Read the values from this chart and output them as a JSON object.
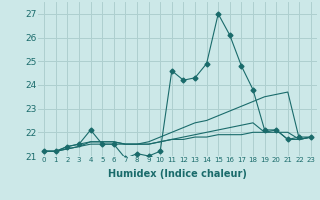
{
  "xlabel": "Humidex (Indice chaleur)",
  "bg_color": "#cce8e8",
  "grid_color": "#aecfcf",
  "line_color": "#1a6b6b",
  "xlim": [
    -0.5,
    23.5
  ],
  "ylim": [
    21.0,
    27.5
  ],
  "yticks": [
    21,
    22,
    23,
    24,
    25,
    26,
    27
  ],
  "xtick_labels": [
    "0",
    "1",
    "2",
    "3",
    "4",
    "5",
    "6",
    "7",
    "8",
    "9",
    "10",
    "11",
    "12",
    "13",
    "14",
    "15",
    "16",
    "17",
    "18",
    "19",
    "20",
    "21",
    "22",
    "23"
  ],
  "series": [
    [
      21.2,
      21.2,
      21.4,
      21.5,
      22.1,
      21.5,
      21.5,
      20.9,
      21.1,
      21.0,
      21.2,
      24.6,
      24.2,
      24.3,
      24.9,
      27.0,
      26.1,
      24.8,
      23.8,
      22.1,
      22.1,
      21.7,
      21.8,
      21.8
    ],
    [
      21.2,
      21.2,
      21.3,
      21.4,
      21.6,
      21.6,
      21.6,
      21.5,
      21.5,
      21.6,
      21.8,
      22.0,
      22.2,
      22.4,
      22.5,
      22.7,
      22.9,
      23.1,
      23.3,
      23.5,
      23.6,
      23.7,
      21.7,
      21.8
    ],
    [
      21.2,
      21.2,
      21.3,
      21.4,
      21.5,
      21.5,
      21.5,
      21.5,
      21.5,
      21.5,
      21.6,
      21.7,
      21.7,
      21.8,
      21.8,
      21.9,
      21.9,
      21.9,
      22.0,
      22.0,
      22.0,
      22.0,
      21.7,
      21.8
    ],
    [
      21.2,
      21.2,
      21.4,
      21.5,
      21.6,
      21.6,
      21.6,
      21.5,
      21.5,
      21.5,
      21.6,
      21.7,
      21.8,
      21.9,
      22.0,
      22.1,
      22.2,
      22.3,
      22.4,
      22.0,
      22.1,
      21.7,
      21.7,
      21.8
    ]
  ],
  "marker_size": 2.5,
  "xlabel_fontsize": 7,
  "ytick_fontsize": 6.5,
  "xtick_fontsize": 5.0
}
